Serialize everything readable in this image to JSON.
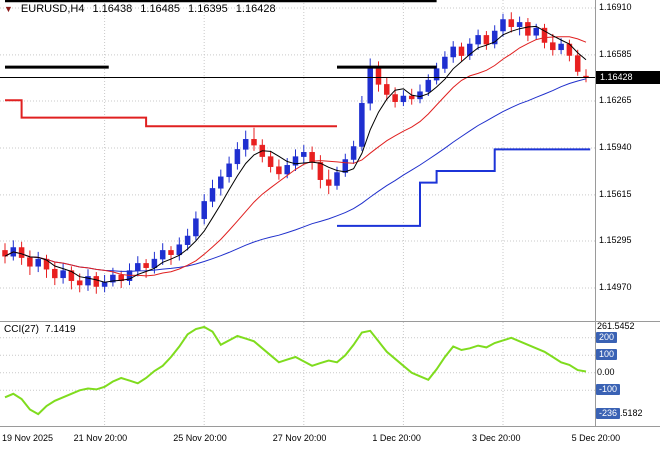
{
  "header": {
    "symbol": "EURUSD,H4",
    "open": "1.16438",
    "high": "1.16485",
    "low": "1.16395",
    "close": "1.16428"
  },
  "cci_header": {
    "name": "CCI(27)",
    "value": "7.1419"
  },
  "price_axis": {
    "labels": [
      "1.16910",
      "1.16585",
      "1.16265",
      "1.15940",
      "1.15615",
      "1.15295",
      "1.14970"
    ],
    "current": "1.16428"
  },
  "time_axis": {
    "ticks": [
      {
        "bar": 0,
        "label": "19 Nov 2025"
      },
      {
        "bar": 12,
        "label": "21 Nov 20:00"
      },
      {
        "bar": 24,
        "label": "25 Nov 20:00"
      },
      {
        "bar": 36,
        "label": "27 Nov 20:00"
      },
      {
        "bar": 48,
        "label": "1 Dec 20:00"
      },
      {
        "bar": 60,
        "label": "3 Dec 20:00"
      },
      {
        "bar": 72,
        "label": "5 Dec 20:00"
      }
    ]
  },
  "cci_axis": {
    "labels": [
      {
        "value": 261.5452,
        "text": "261.5452",
        "style": "plain"
      },
      {
        "value": 200,
        "text": "200",
        "style": "badge"
      },
      {
        "value": 100,
        "text": "100",
        "style": "badge"
      },
      {
        "value": 0,
        "text": "0.00",
        "style": "plain"
      },
      {
        "value": -100,
        "text": "-100",
        "style": "badge"
      },
      {
        "value": -236.5182,
        "text": "-236",
        "rest": ".5182",
        "style": "badge-split"
      }
    ]
  },
  "colors": {
    "bull": "#1f2fd0",
    "bear": "#e82020",
    "ma_black": "#000000",
    "ma_red": "#e02020",
    "ma_blue": "#2030cc",
    "step_red": "#e02020",
    "step_blue": "#1c34d8",
    "black_line": "#000000",
    "cci_line": "#7fdc1e",
    "badge_blue": "#3a62b4",
    "grid": "#c9c9c9",
    "separator": "#9a9a9a",
    "marker": "#8b1a1a"
  },
  "chart_data": [
    {
      "type": "candlestick",
      "title": "EURUSD,H4",
      "ylim": [
        1.14748,
        1.16965
      ],
      "grid": true,
      "candles": [
        [
          1.1523,
          1.1528,
          1.1514,
          1.1519
        ],
        [
          1.1519,
          1.153,
          1.1516,
          1.1525
        ],
        [
          1.1525,
          1.1529,
          1.1513,
          1.1518
        ],
        [
          1.1518,
          1.1523,
          1.1506,
          1.1512
        ],
        [
          1.1512,
          1.1522,
          1.1508,
          1.1517
        ],
        [
          1.1517,
          1.152,
          1.1504,
          1.151
        ],
        [
          1.151,
          1.1515,
          1.1499,
          1.1504
        ],
        [
          1.1504,
          1.1514,
          1.15,
          1.1509
        ],
        [
          1.1509,
          1.1512,
          1.1496,
          1.1502
        ],
        [
          1.1502,
          1.1507,
          1.1494,
          1.1499
        ],
        [
          1.1499,
          1.151,
          1.1495,
          1.1505
        ],
        [
          1.1505,
          1.1508,
          1.1493,
          1.1498
        ],
        [
          1.1498,
          1.1506,
          1.1494,
          1.1501
        ],
        [
          1.1501,
          1.1511,
          1.1498,
          1.1506
        ],
        [
          1.1506,
          1.1509,
          1.1497,
          1.1502
        ],
        [
          1.1502,
          1.1514,
          1.1499,
          1.1509
        ],
        [
          1.1509,
          1.1519,
          1.1505,
          1.1514
        ],
        [
          1.1514,
          1.1517,
          1.1504,
          1.1511
        ],
        [
          1.1511,
          1.1522,
          1.1507,
          1.1517
        ],
        [
          1.1517,
          1.1528,
          1.1513,
          1.1523
        ],
        [
          1.1523,
          1.1526,
          1.1513,
          1.152
        ],
        [
          1.152,
          1.1532,
          1.1516,
          1.1527
        ],
        [
          1.1527,
          1.1538,
          1.1523,
          1.1533
        ],
        [
          1.1533,
          1.155,
          1.153,
          1.1545
        ],
        [
          1.1545,
          1.1562,
          1.1541,
          1.1557
        ],
        [
          1.1557,
          1.1572,
          1.1553,
          1.1566
        ],
        [
          1.1566,
          1.1579,
          1.1561,
          1.1574
        ],
        [
          1.1574,
          1.1588,
          1.157,
          1.1583
        ],
        [
          1.1583,
          1.1598,
          1.1579,
          1.1593
        ],
        [
          1.1593,
          1.1606,
          1.1588,
          1.16
        ],
        [
          1.16,
          1.1608,
          1.1592,
          1.1596
        ],
        [
          1.1596,
          1.16,
          1.1584,
          1.1588
        ],
        [
          1.1588,
          1.1592,
          1.1577,
          1.1581
        ],
        [
          1.1581,
          1.1586,
          1.1572,
          1.1576
        ],
        [
          1.1576,
          1.1587,
          1.1573,
          1.1582
        ],
        [
          1.1582,
          1.1593,
          1.1578,
          1.1588
        ],
        [
          1.1588,
          1.1596,
          1.1583,
          1.1591
        ],
        [
          1.1591,
          1.1595,
          1.1579,
          1.1584
        ],
        [
          1.1584,
          1.1589,
          1.1566,
          1.1572
        ],
        [
          1.1572,
          1.1579,
          1.1562,
          1.1568
        ],
        [
          1.1568,
          1.1581,
          1.1565,
          1.1577
        ],
        [
          1.1577,
          1.159,
          1.1574,
          1.1586
        ],
        [
          1.1586,
          1.1599,
          1.1583,
          1.1595
        ],
        [
          1.1595,
          1.163,
          1.1592,
          1.1625
        ],
        [
          1.1625,
          1.1656,
          1.162,
          1.165
        ],
        [
          1.165,
          1.1654,
          1.1633,
          1.1638
        ],
        [
          1.1638,
          1.1643,
          1.1627,
          1.1631
        ],
        [
          1.1631,
          1.1636,
          1.1622,
          1.1626
        ],
        [
          1.1626,
          1.1634,
          1.1623,
          1.163
        ],
        [
          1.163,
          1.1635,
          1.1624,
          1.1628
        ],
        [
          1.1628,
          1.1638,
          1.1625,
          1.1633
        ],
        [
          1.1633,
          1.1645,
          1.163,
          1.1641
        ],
        [
          1.1641,
          1.1653,
          1.1638,
          1.1649
        ],
        [
          1.1649,
          1.1661,
          1.1646,
          1.1657
        ],
        [
          1.1657,
          1.1668,
          1.1653,
          1.1664
        ],
        [
          1.1664,
          1.1667,
          1.1654,
          1.1658
        ],
        [
          1.1658,
          1.167,
          1.1655,
          1.1666
        ],
        [
          1.1666,
          1.1676,
          1.1662,
          1.1672
        ],
        [
          1.1672,
          1.1675,
          1.1662,
          1.1666
        ],
        [
          1.1666,
          1.1679,
          1.1663,
          1.1675
        ],
        [
          1.1675,
          1.1687,
          1.1671,
          1.1683
        ],
        [
          1.1683,
          1.1688,
          1.1674,
          1.1678
        ],
        [
          1.1678,
          1.1685,
          1.1672,
          1.1681
        ],
        [
          1.1681,
          1.1684,
          1.1668,
          1.1672
        ],
        [
          1.1672,
          1.168,
          1.1669,
          1.1677
        ],
        [
          1.1677,
          1.168,
          1.1663,
          1.1667
        ],
        [
          1.1667,
          1.1673,
          1.1658,
          1.1662
        ],
        [
          1.1662,
          1.167,
          1.1659,
          1.1666
        ],
        [
          1.1666,
          1.1669,
          1.1654,
          1.1658
        ],
        [
          1.1658,
          1.1662,
          1.1644,
          1.1647
        ],
        [
          1.16438,
          1.16485,
          1.16395,
          1.16428
        ]
      ],
      "overlays": {
        "sma_periods": {
          "black": 5,
          "red": 13,
          "blue": 34
        },
        "red_steps": [
          [
            0,
            1.1627
          ],
          [
            2,
            1.1627
          ],
          [
            2,
            1.1615
          ],
          [
            17,
            1.1615
          ],
          [
            17,
            1.1609
          ],
          [
            40,
            1.1609
          ]
        ],
        "blue_steps": [
          [
            40,
            1.154
          ],
          [
            50,
            1.154
          ],
          [
            50,
            1.157
          ],
          [
            52,
            1.157
          ],
          [
            52,
            1.1578
          ],
          [
            59,
            1.1578
          ],
          [
            59,
            1.1593
          ],
          [
            70.5,
            1.1593
          ]
        ],
        "black_segments": [
          {
            "price": 1.1696,
            "from": 0,
            "to": 52
          },
          {
            "price": 1.165,
            "from": 0,
            "to": 12.5
          },
          {
            "price": 1.165,
            "from": 40,
            "to": 52
          }
        ],
        "current_price_line": 1.16428
      }
    },
    {
      "type": "line",
      "title": "CCI(27)",
      "last_value": 7.1419,
      "ylim": [
        -310,
        290
      ],
      "levels": [
        200,
        100,
        0,
        -100
      ],
      "values": [
        -140,
        -120,
        -150,
        -210,
        -236.5182,
        -190,
        -160,
        -140,
        -120,
        -100,
        -90,
        -95,
        -80,
        -50,
        -30,
        -45,
        -60,
        -30,
        10,
        40,
        90,
        150,
        220,
        250,
        261.5452,
        235,
        160,
        185,
        210,
        195,
        180,
        140,
        100,
        60,
        75,
        90,
        65,
        40,
        55,
        70,
        60,
        100,
        160,
        230,
        240,
        180,
        120,
        80,
        40,
        0,
        -20,
        -40,
        20,
        90,
        150,
        130,
        140,
        155,
        145,
        170,
        185,
        200,
        180,
        160,
        140,
        120,
        90,
        60,
        45,
        15,
        7.1419
      ]
    }
  ]
}
